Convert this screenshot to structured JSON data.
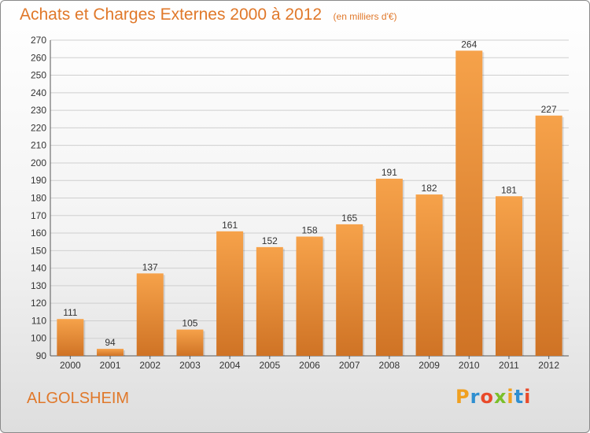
{
  "header": {
    "title": "Achats et Charges Externes 2000 à 2012",
    "subtitle": "(en milliers d'€)"
  },
  "footer": {
    "commune": "ALGOLSHEIM",
    "logo_letters": [
      "P",
      "r",
      "o",
      "x",
      "i",
      "t",
      "i"
    ],
    "logo_colors": [
      "#f0a020",
      "#2f8fd0",
      "#e94a2a",
      "#7bbf2a",
      "#f0a020",
      "#2f8fd0",
      "#e94a2a"
    ]
  },
  "colors": {
    "bar_light": "#f6a24a",
    "bar_dark": "#cf7325",
    "accent": "#e0782a",
    "grid": "#cfcfcf"
  },
  "chart_data": {
    "type": "bar",
    "title": "Achats et Charges Externes 2000 à 2012",
    "subtitle": "(en milliers d'€)",
    "categories": [
      "2000",
      "2001",
      "2002",
      "2003",
      "2004",
      "2005",
      "2006",
      "2007",
      "2008",
      "2009",
      "2010",
      "2011",
      "2012"
    ],
    "values": [
      111,
      94,
      137,
      105,
      161,
      152,
      158,
      165,
      191,
      182,
      264,
      181,
      227
    ],
    "ylim": [
      90,
      270
    ],
    "yticks": [
      90,
      100,
      110,
      120,
      130,
      140,
      150,
      160,
      170,
      180,
      190,
      200,
      210,
      220,
      230,
      240,
      250,
      260,
      270
    ],
    "grid": true,
    "xlabel": "",
    "ylabel": ""
  }
}
